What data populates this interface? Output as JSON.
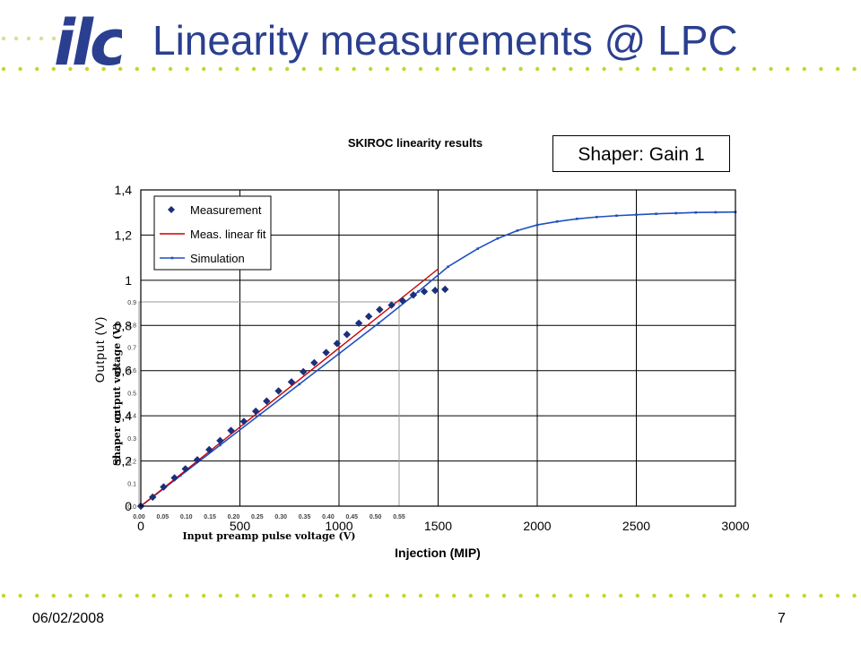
{
  "slide": {
    "title": "Linearity measurements @ LPC",
    "date": "06/02/2008",
    "page_number": "7",
    "logo_text": "ilc",
    "shaper_label": "Shaper: Gain 1",
    "title_color": "#2a3f8f",
    "dot_color": "#c6d42a"
  },
  "chart_data": [
    {
      "type": "line",
      "title": "SKIROC linearity results",
      "xlabel": "Injection (MIP)",
      "ylabel": "Output (V)",
      "xlim": [
        0,
        3000
      ],
      "ylim": [
        0,
        1.4
      ],
      "xticks": [
        0,
        500,
        1000,
        1500,
        2000,
        2500,
        3000
      ],
      "xtick_labels": [
        "0",
        "500",
        "1000",
        "1500",
        "2000",
        "2500",
        "3000"
      ],
      "yticks": [
        0,
        0.2,
        0.4,
        0.6,
        0.8,
        1,
        1.2,
        1.4
      ],
      "ytick_labels": [
        "0",
        "0,2",
        "0,4",
        "0,6",
        "0,8",
        "1",
        "1,2",
        "1,4"
      ],
      "grid": true,
      "legend_position": "top-left",
      "series": [
        {
          "name": "Measurement",
          "marker": "diamond",
          "color": "#1c2f7a",
          "x": [
            0,
            60,
            115,
            170,
            225,
            285,
            345,
            400,
            455,
            520,
            580,
            635,
            695,
            760,
            820,
            875,
            935,
            990,
            1040,
            1100,
            1150,
            1205,
            1265,
            1320,
            1375,
            1430,
            1485,
            1535
          ],
          "y": [
            0,
            0.04,
            0.085,
            0.125,
            0.165,
            0.205,
            0.25,
            0.29,
            0.335,
            0.375,
            0.42,
            0.465,
            0.51,
            0.55,
            0.595,
            0.635,
            0.68,
            0.72,
            0.76,
            0.81,
            0.84,
            0.87,
            0.89,
            0.91,
            0.935,
            0.95,
            0.955,
            0.96
          ]
        },
        {
          "name": "Meas. linear fit",
          "color": "#cc0000",
          "x": [
            0,
            1500
          ],
          "y": [
            0,
            1.05
          ]
        },
        {
          "name": "Simulation",
          "color": "#1f4fbf",
          "x": [
            0,
            200,
            400,
            600,
            800,
            1000,
            1200,
            1400,
            1550,
            1700,
            1800,
            1900,
            2000,
            2100,
            2200,
            2300,
            2400,
            2500,
            2600,
            2700,
            2800,
            2900,
            3000
          ],
          "y": [
            0,
            0.135,
            0.27,
            0.405,
            0.54,
            0.675,
            0.81,
            0.95,
            1.06,
            1.14,
            1.185,
            1.22,
            1.245,
            1.26,
            1.272,
            1.28,
            1.286,
            1.29,
            1.294,
            1.297,
            1.3,
            1.301,
            1.302
          ]
        }
      ]
    },
    {
      "type": "scatter",
      "title": "",
      "xlabel": "Input preamp pulse voltage (V)",
      "ylabel": "Shaper output voltage (V)",
      "xlim": [
        0,
        0.55
      ],
      "ylim": [
        0,
        0.9
      ],
      "xtick_labels": [
        "0.00",
        "0.05",
        "0.10",
        "0.15",
        "0.20",
        "0.25",
        "0.30",
        "0.35",
        "0.40",
        "0.45",
        "0.50",
        "0.55"
      ],
      "ytick_labels": [
        "0.0",
        "0.1",
        "0.2",
        "0.3",
        "0.4",
        "0.5",
        "0.6",
        "0.7",
        "0.8",
        "0.9"
      ]
    }
  ]
}
